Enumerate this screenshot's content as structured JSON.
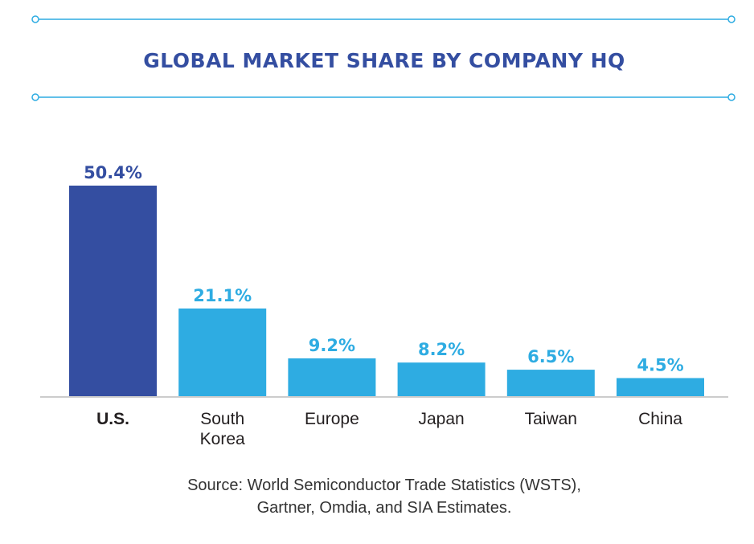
{
  "chart_data": {
    "type": "bar",
    "title": "GLOBAL MARKET SHARE BY COMPANY HQ",
    "categories": [
      "U.S.",
      "South Korea",
      "Europe",
      "Japan",
      "Taiwan",
      "China"
    ],
    "category_lines": [
      [
        "U.S."
      ],
      [
        "South",
        "Korea"
      ],
      [
        "Europe"
      ],
      [
        "Japan"
      ],
      [
        "Taiwan"
      ],
      [
        "China"
      ]
    ],
    "values": [
      50.4,
      21.1,
      9.2,
      8.2,
      6.5,
      4.5
    ],
    "value_labels": [
      "50.4%",
      "21.1%",
      "9.2%",
      "8.2%",
      "6.5%",
      "4.5%"
    ],
    "highlight_index": 0,
    "xlabel": "",
    "ylabel": "",
    "ylim": [
      0,
      50.4
    ],
    "grid": false,
    "source_lines": [
      "Source: World Semiconductor Trade Statistics (WSTS),",
      "Gartner, Omdia, and SIA Estimates."
    ]
  },
  "colors": {
    "highlight": "#344ea1",
    "bar": "#2eace2",
    "title": "#344ea1",
    "rule": "#2eace2",
    "baseline": "#cccccc",
    "category_text": "#231f20"
  },
  "icons": {
    "rule_end": "circle-node-icon"
  }
}
